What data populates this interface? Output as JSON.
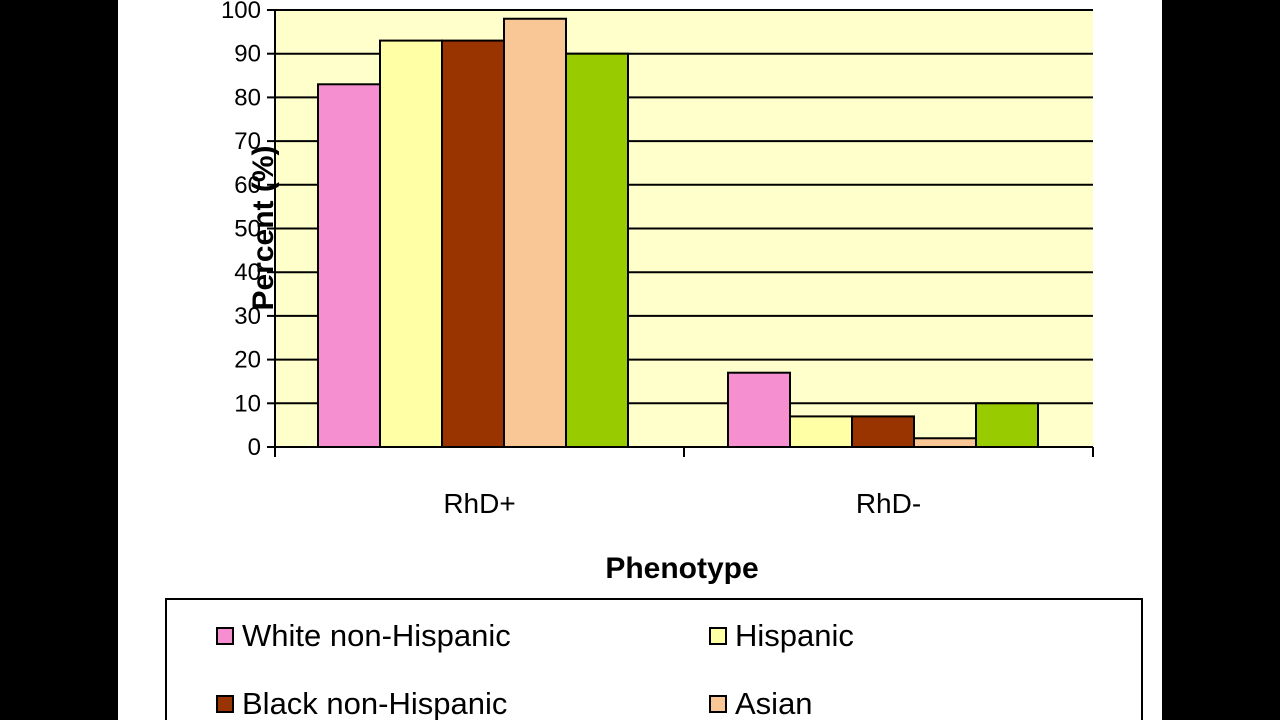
{
  "chart_data": {
    "type": "bar",
    "categories": [
      "RhD+",
      "RhD-"
    ],
    "series": [
      {
        "name": "White non-Hispanic",
        "values": [
          83,
          17
        ],
        "color": "#F58FD0"
      },
      {
        "name": "Hispanic",
        "values": [
          93,
          7
        ],
        "color": "#FFFFA6"
      },
      {
        "name": "Black non-Hispanic",
        "values": [
          93,
          7
        ],
        "color": "#993300"
      },
      {
        "name": "Asian",
        "values": [
          98,
          2
        ],
        "color": "#F9C696"
      },
      {
        "name": "",
        "values": [
          90,
          10
        ],
        "color": "#99CC00"
      }
    ],
    "xlabel": "Phenotype",
    "ylabel": "Percent (%)",
    "ylim": [
      0,
      100
    ],
    "yticks": [
      "0",
      "10",
      "20",
      "30",
      "40",
      "50",
      "60",
      "70",
      "80",
      "90",
      "100"
    ],
    "grid": true,
    "plot_background": "#FFFFCC",
    "legend_position": "bottom"
  }
}
